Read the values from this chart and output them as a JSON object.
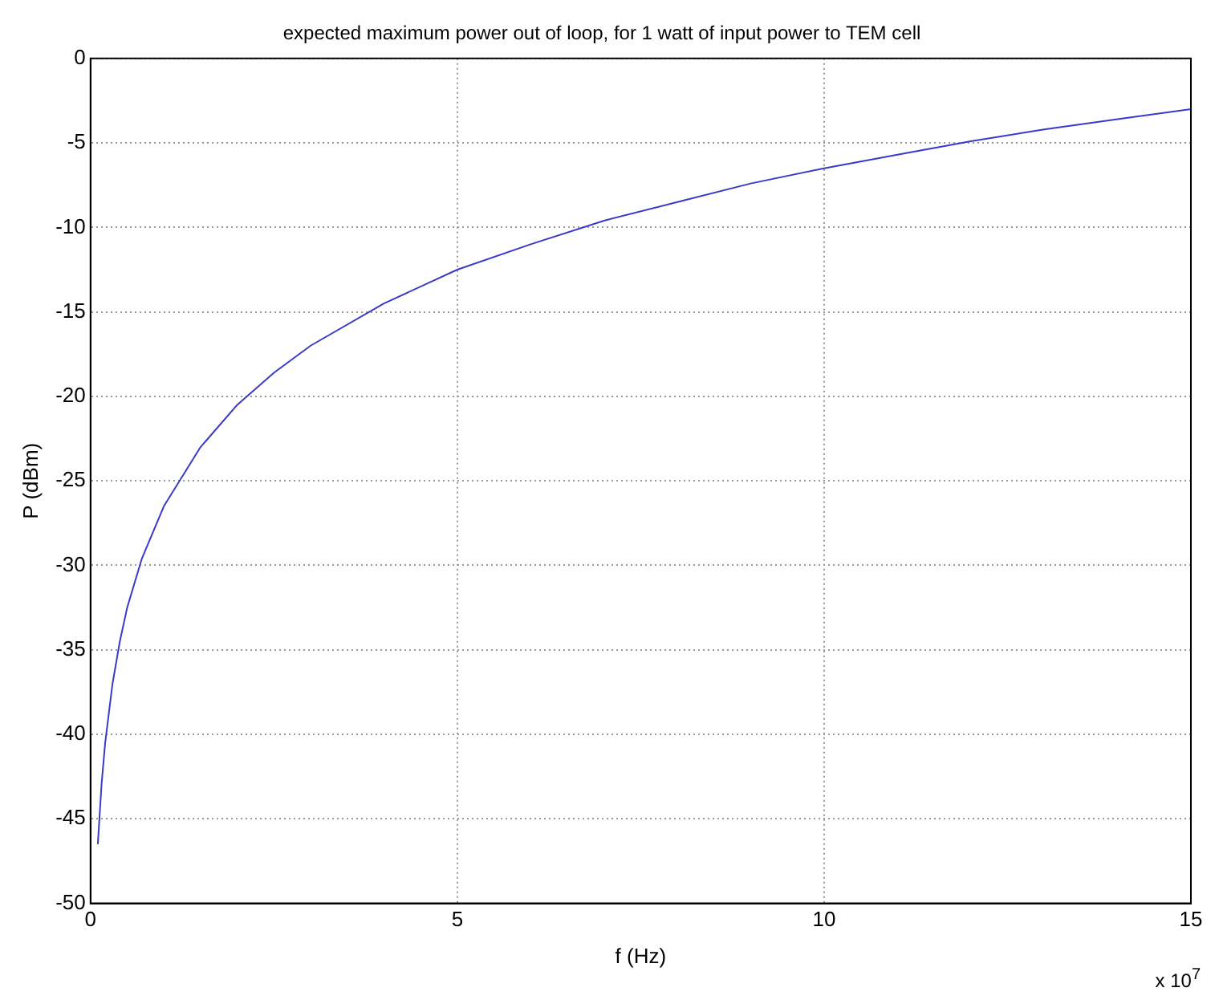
{
  "chart_data": {
    "type": "line",
    "title": "expected maximum power out of loop, for 1 watt of input power to TEM cell",
    "xlabel": "f (Hz)",
    "ylabel": "P (dBm)",
    "annotations": [
      "x 10$^{7}$"
    ],
    "x": [
      0.1,
      0.15,
      0.2,
      0.3,
      0.4,
      0.5,
      0.7,
      1,
      1.5,
      2,
      2.5,
      3,
      4,
      5,
      6,
      7,
      8,
      9,
      10,
      11,
      12,
      13,
      14,
      15
    ],
    "series": [
      {
        "color": "#3a3ac8",
        "values": [
          -46.5,
          -43,
          -40.5,
          -37,
          -34.5,
          -32.5,
          -29.6,
          -26.5,
          -23,
          -20.5,
          -18.6,
          -17,
          -14.5,
          -12.5,
          -11,
          -9.6,
          -8.5,
          -7.4,
          -6.5,
          -5.7,
          -4.9,
          -4.2,
          -3.6,
          -3
        ]
      }
    ],
    "xlim": [
      0,
      15
    ],
    "xticks": [
      0,
      5,
      10,
      15
    ],
    "ylim": [
      -50,
      0
    ],
    "yticks": [
      -50,
      -45,
      -40,
      -35,
      -30,
      -25,
      -20,
      -15,
      -10,
      -5,
      0
    ],
    "grid": true,
    "legend": false,
    "marker": "none",
    "line_style": "solid"
  }
}
